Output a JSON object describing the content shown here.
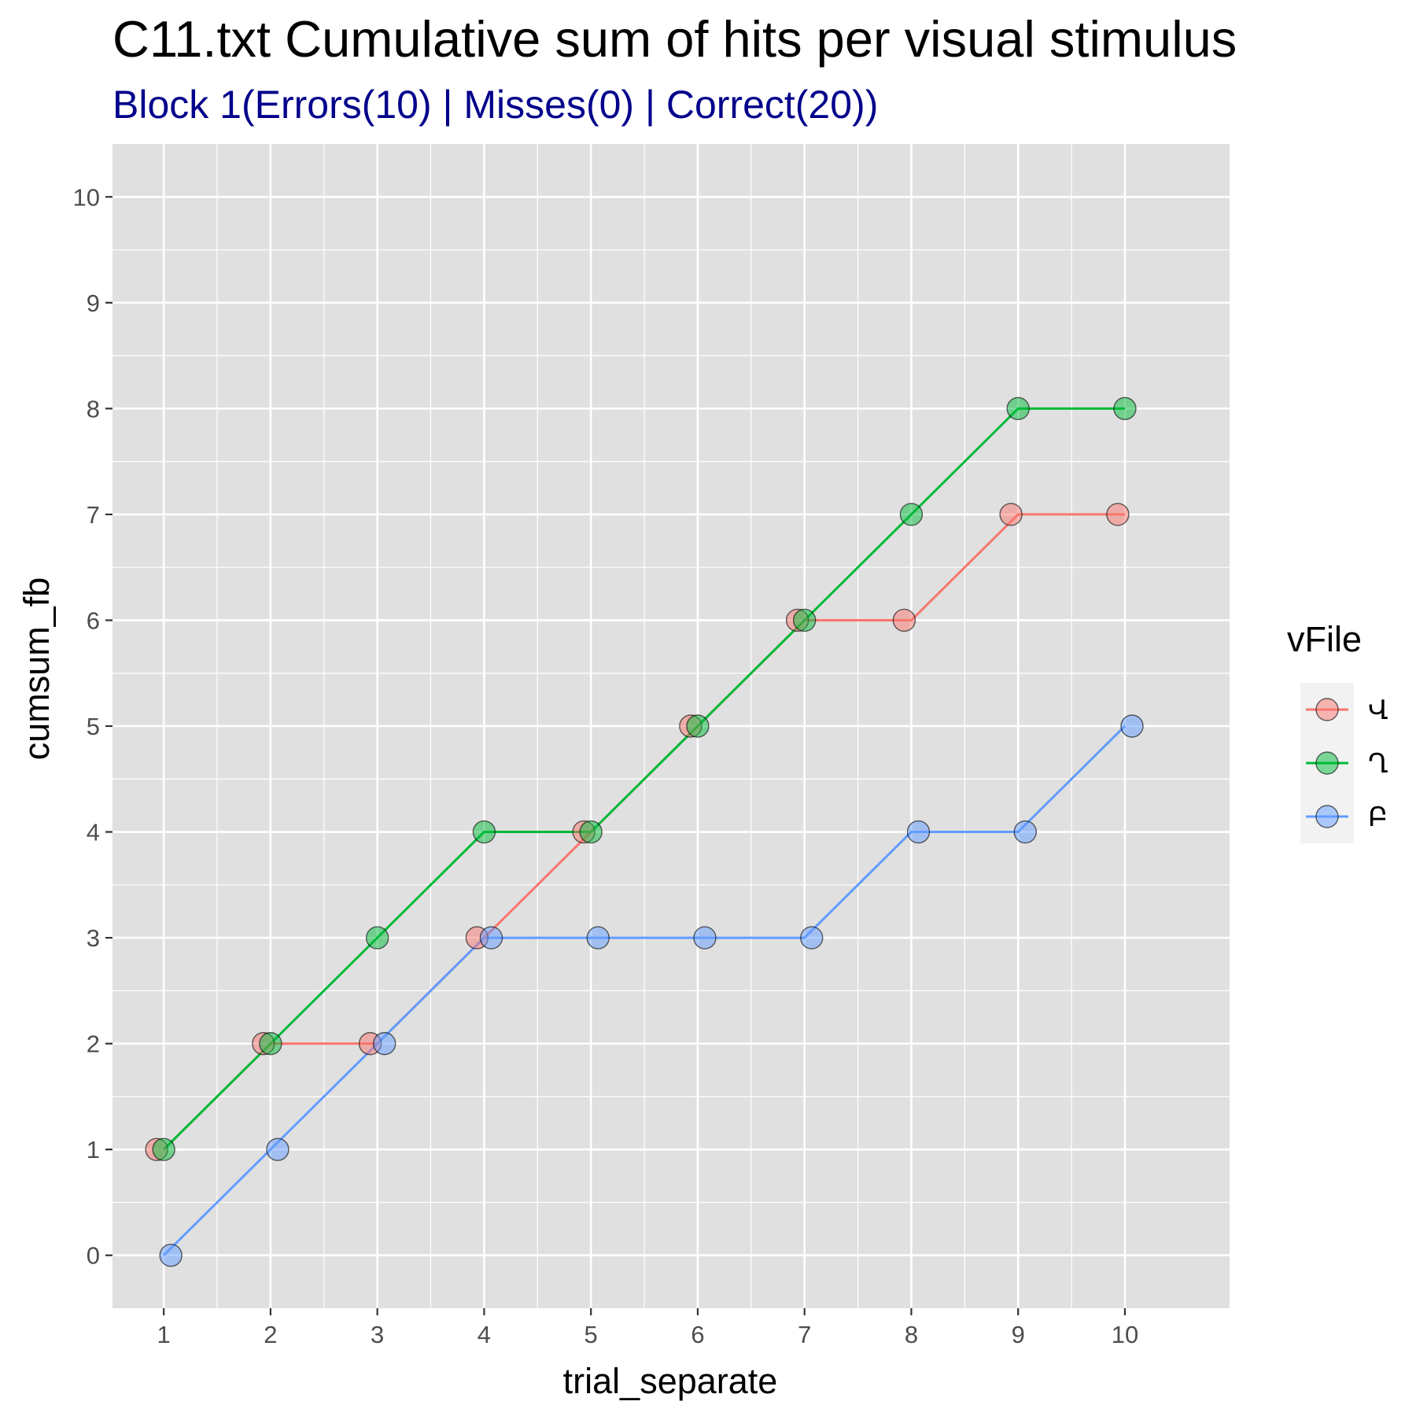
{
  "chart_data": {
    "type": "line",
    "title": "C11.txt Cumulative sum of hits per visual stimulus",
    "subtitle": "Block 1(Errors(10) | Misses(0) | Correct(20))",
    "subtitle_color": "#00008b",
    "xlabel": "trial_separate",
    "ylabel": "cumsum_fb",
    "x": [
      1,
      2,
      3,
      4,
      5,
      6,
      7,
      8,
      9,
      10
    ],
    "xticks": [
      "1",
      "2",
      "3",
      "4",
      "5",
      "6",
      "7",
      "8",
      "9",
      "10"
    ],
    "yticks": [
      "0",
      "1",
      "2",
      "3",
      "4",
      "5",
      "6",
      "7",
      "8",
      "9",
      "10"
    ],
    "xlim": [
      0.52,
      10.98
    ],
    "ylim": [
      -0.5,
      10.5
    ],
    "grid": true,
    "panel_background": "#e0e0e0",
    "legend": {
      "title": "vFile",
      "position": "right"
    },
    "series": [
      {
        "name": "Վ",
        "color": "#f8766d",
        "values": [
          1,
          2,
          2,
          3,
          4,
          5,
          6,
          6,
          7,
          7
        ]
      },
      {
        "name": "Ղ",
        "color": "#00ba38",
        "values": [
          1,
          2,
          3,
          4,
          4,
          5,
          6,
          7,
          8,
          8
        ]
      },
      {
        "name": "Բ",
        "color": "#619cff",
        "values": [
          0,
          1,
          2,
          3,
          3,
          3,
          3,
          4,
          4,
          5
        ]
      }
    ]
  }
}
